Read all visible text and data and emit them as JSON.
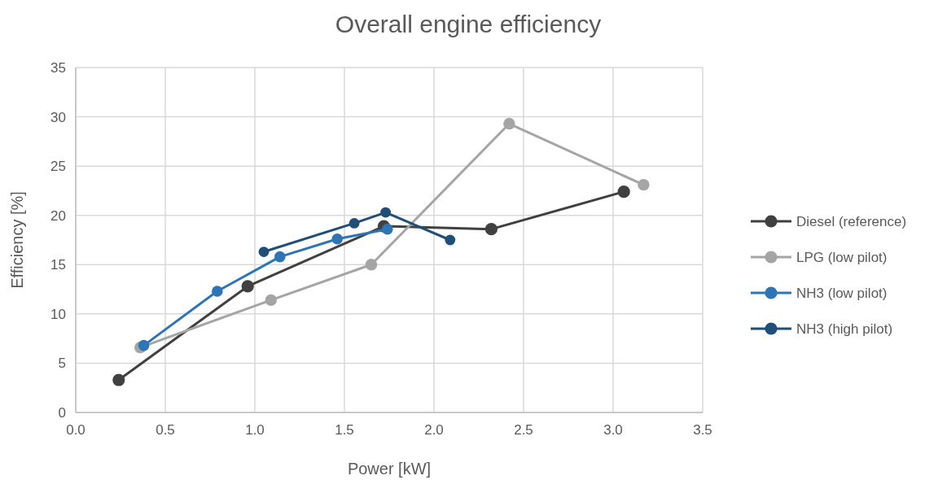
{
  "chart_data": {
    "type": "line",
    "title": "Overall engine efficiency",
    "xlabel": "Power [kW]",
    "ylabel": "Efficiency [%]",
    "xlim": [
      0,
      3.5
    ],
    "xticks": [
      {
        "value": 0,
        "label": "0.0"
      },
      {
        "value": 0.5,
        "label": "0.5"
      },
      {
        "value": 1,
        "label": "1.0"
      },
      {
        "value": 1.5,
        "label": "1.5"
      },
      {
        "value": 2,
        "label": "2.0"
      },
      {
        "value": 2.5,
        "label": "2.5"
      },
      {
        "value": 3,
        "label": "3.0"
      },
      {
        "value": 3.5,
        "label": "3.5"
      }
    ],
    "ylim": [
      0,
      35
    ],
    "yticks": [
      0,
      5,
      10,
      15,
      20,
      25,
      30,
      35
    ],
    "grid": true,
    "legend": "right",
    "marker": "circle",
    "line_style": "solid",
    "series": [
      {
        "name": "Diesel (reference)",
        "color": "#404040",
        "x": [
          0.24,
          0.96,
          1.72,
          2.32,
          3.06
        ],
        "values": [
          3.3,
          12.8,
          18.9,
          18.6,
          22.4
        ]
      },
      {
        "name": "LPG (low pilot)",
        "color": "#a5a5a5",
        "x": [
          0.36,
          1.09,
          1.65,
          2.42,
          3.17
        ],
        "values": [
          6.6,
          11.4,
          15.0,
          29.3,
          23.1
        ]
      },
      {
        "name": "NH3 (low pilot)",
        "color": "#2e75b6",
        "x": [
          0.38,
          0.79,
          1.14,
          1.46,
          1.74
        ],
        "values": [
          6.8,
          12.3,
          15.8,
          17.6,
          18.6
        ]
      },
      {
        "name": "NH3 (high pilot)",
        "color": "#1f4e79",
        "x": [
          1.05,
          1.555,
          1.73,
          2.09
        ],
        "values": [
          16.3,
          19.2,
          20.3,
          17.5
        ]
      }
    ]
  }
}
